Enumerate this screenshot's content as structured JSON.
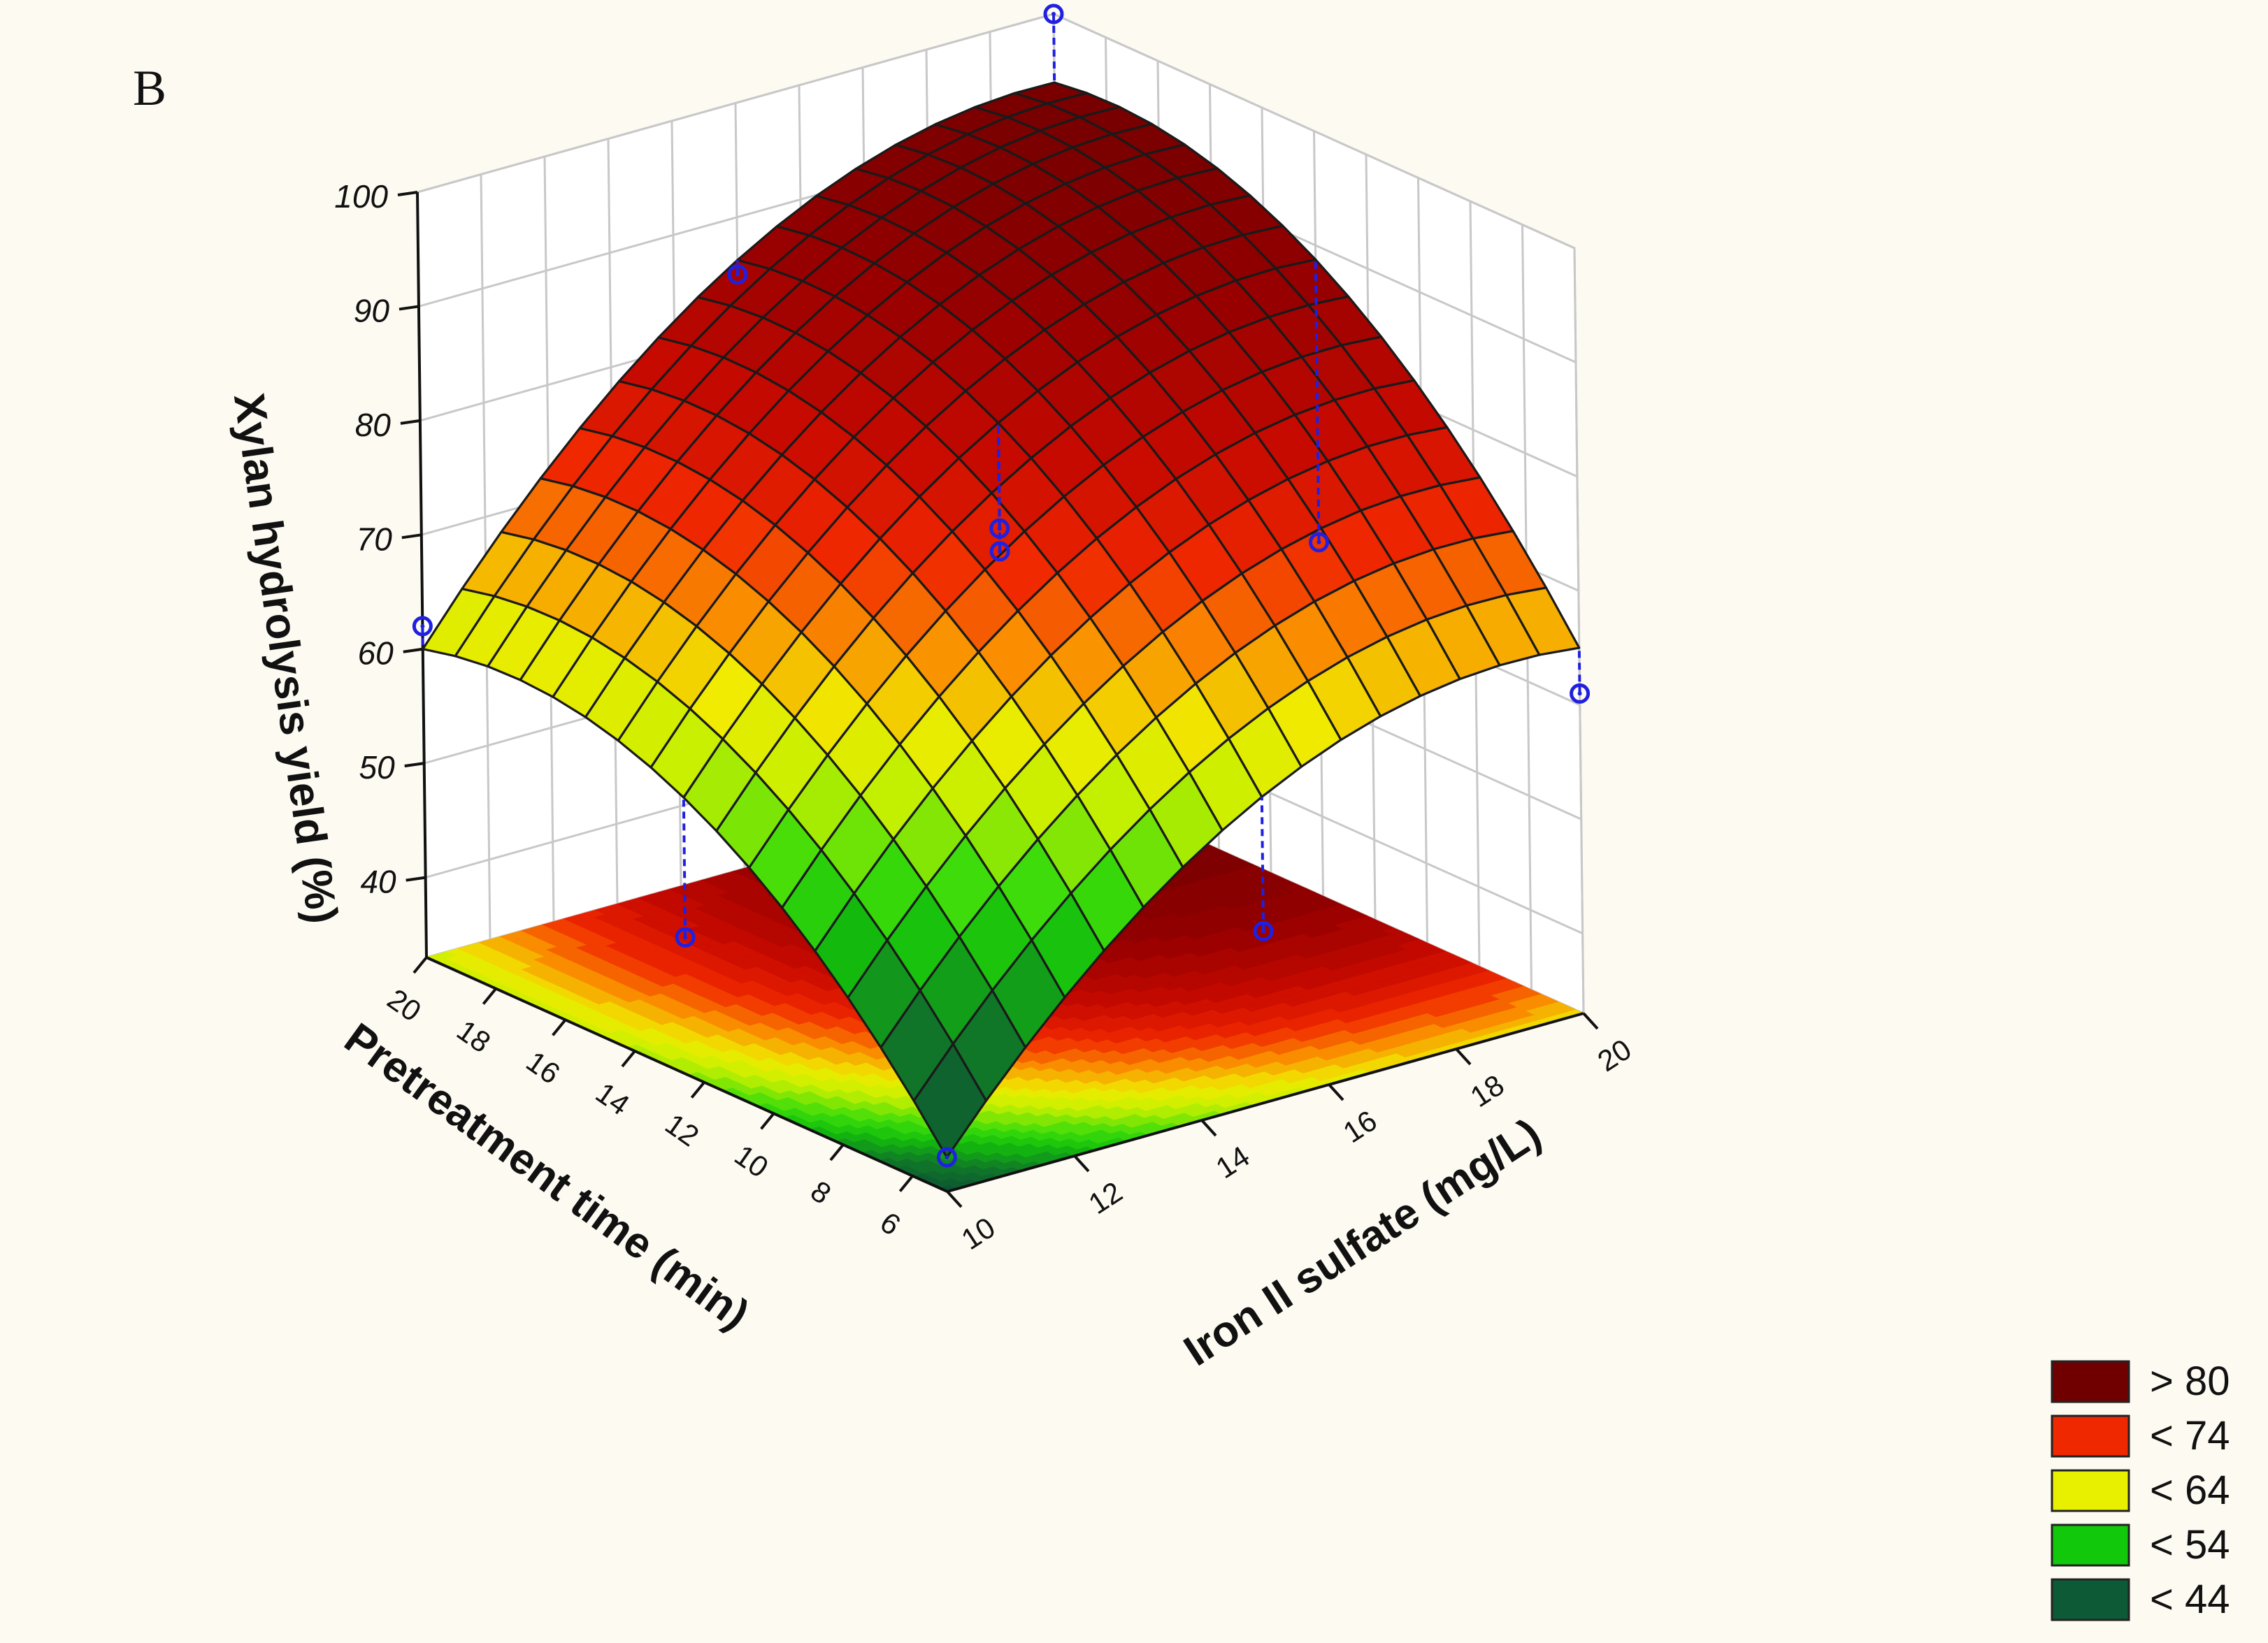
{
  "panel_label": "B",
  "chart_data": {
    "type": "surface",
    "zlabel": "Xylan hydrolysis yield (%)",
    "xlabel": "Pretreatment time (min)",
    "ylabel": "Iron II sulfate (mg/L)",
    "x_ticks": [
      "6",
      "8",
      "10",
      "12",
      "14",
      "16",
      "18",
      "20"
    ],
    "y_ticks": [
      "10",
      "12",
      "14",
      "16",
      "18",
      "20"
    ],
    "z_ticks": [
      "40",
      "50",
      "60",
      "70",
      "80",
      "90",
      "100"
    ],
    "xlim": [
      5,
      20
    ],
    "ylim": [
      10,
      20
    ],
    "zlim": [
      33,
      100
    ],
    "grid": true,
    "grid_resolution": [
      16,
      16
    ],
    "surface": {
      "form": "quadratic",
      "corners": {
        "x5_y10": 36,
        "x20_y10": 60,
        "x5_y20": 65,
        "x20_y20": 94
      },
      "center": 73
    },
    "design_points": [
      {
        "x": 5,
        "y": 10,
        "z": 36
      },
      {
        "x": 20,
        "y": 10,
        "z": 62
      },
      {
        "x": 5,
        "y": 20,
        "z": 61
      },
      {
        "x": 20,
        "y": 20,
        "z": 100
      },
      {
        "x": 5,
        "y": 15,
        "z": 48
      },
      {
        "x": 12.5,
        "y": 10,
        "z": 45
      },
      {
        "x": 20,
        "y": 15,
        "z": 85
      },
      {
        "x": 12.5,
        "y": 20,
        "z": 64
      },
      {
        "x": 12.5,
        "y": 15,
        "z": 71
      },
      {
        "x": 12.5,
        "y": 15,
        "z": 73
      }
    ],
    "colors": {
      "gt80": "#700000",
      "lt80": "#a00b00",
      "lt74": "#f02800",
      "lt64": "#e8f000",
      "lt54": "#12c80a",
      "lt44": "#0d5a36",
      "grid_line": "#c8c8c8",
      "mesh_line": "#1a1a1a",
      "point": "#2020e0"
    },
    "legend_placement": "bottom-right",
    "legend": [
      {
        "label": "> 80",
        "color": "#700000"
      },
      {
        "label": "< 74",
        "color": "#f02800"
      },
      {
        "label": "< 64",
        "color": "#e8f000"
      },
      {
        "label": "< 54",
        "color": "#12c80a"
      },
      {
        "label": "< 44",
        "color": "#0d5a36"
      }
    ]
  }
}
